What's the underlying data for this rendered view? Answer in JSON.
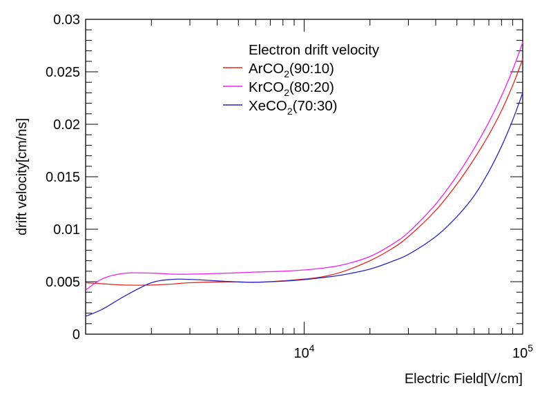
{
  "chart_data": {
    "type": "line",
    "title": "",
    "xlabel": "Electric Field[V/cm]",
    "ylabel": "drift velocity[cm/ns]",
    "xscale": "log",
    "xlim": [
      1000,
      100000
    ],
    "ylim": [
      0,
      0.03
    ],
    "grid": false,
    "legend": {
      "title": "Electron drift velocity",
      "placement": "top-center"
    },
    "x_ticks": [
      {
        "value": 10000,
        "base": "10",
        "exp": "4"
      },
      {
        "value": 100000,
        "base": "10",
        "exp": "5"
      }
    ],
    "y_ticks": [
      {
        "value": 0,
        "label": "0"
      },
      {
        "value": 0.005,
        "label": "0.005"
      },
      {
        "value": 0.01,
        "label": "0.01"
      },
      {
        "value": 0.015,
        "label": "0.015"
      },
      {
        "value": 0.02,
        "label": "0.02"
      },
      {
        "value": 0.025,
        "label": "0.025"
      },
      {
        "value": 0.03,
        "label": "0.03"
      }
    ],
    "series": [
      {
        "name": "ArCO2(90:10)",
        "legend_main": "ArCO",
        "legend_sub": "2",
        "legend_tail": "(90:10)",
        "color": "#e8231e",
        "x": [
          1000,
          1200,
          1500,
          2000,
          2500,
          3000,
          4000,
          5000,
          6000,
          8000,
          10000,
          12000,
          15000,
          20000,
          25000,
          30000,
          40000,
          50000,
          60000,
          70000,
          80000,
          90000,
          100000
        ],
        "y": [
          0.0049,
          0.0048,
          0.00468,
          0.00468,
          0.00478,
          0.0049,
          0.00498,
          0.00498,
          0.00494,
          0.00508,
          0.00525,
          0.00545,
          0.00595,
          0.007,
          0.0081,
          0.0093,
          0.0118,
          0.0143,
          0.0167,
          0.019,
          0.0213,
          0.0237,
          0.0262
        ]
      },
      {
        "name": "KrCO2(80:20)",
        "legend_main": "KrCO",
        "legend_sub": "2",
        "legend_tail": "(80:20)",
        "color": "#f01ef0",
        "x": [
          1000,
          1200,
          1500,
          2000,
          2500,
          3000,
          4000,
          5000,
          6000,
          8000,
          10000,
          12000,
          15000,
          20000,
          25000,
          30000,
          40000,
          50000,
          60000,
          70000,
          80000,
          90000,
          100000
        ],
        "y": [
          0.0042,
          0.0053,
          0.0058,
          0.00582,
          0.00572,
          0.00572,
          0.00578,
          0.00585,
          0.00592,
          0.006,
          0.00612,
          0.00628,
          0.0066,
          0.0074,
          0.0085,
          0.0097,
          0.0124,
          0.0151,
          0.0177,
          0.0202,
          0.0227,
          0.0252,
          0.0278
        ]
      },
      {
        "name": "XeCO2(70:30)",
        "legend_main": "XeCO",
        "legend_sub": "2",
        "legend_tail": "(70:30)",
        "color": "#2424c8",
        "x": [
          1000,
          1200,
          1500,
          2000,
          2500,
          3000,
          4000,
          5000,
          6000,
          8000,
          10000,
          12000,
          15000,
          20000,
          25000,
          30000,
          40000,
          50000,
          60000,
          70000,
          80000,
          90000,
          100000
        ],
        "y": [
          0.0017,
          0.0024,
          0.0036,
          0.0049,
          0.00522,
          0.00522,
          0.00508,
          0.00498,
          0.00495,
          0.00505,
          0.0052,
          0.00538,
          0.00565,
          0.0062,
          0.0069,
          0.0076,
          0.0093,
          0.0112,
          0.0132,
          0.0155,
          0.0179,
          0.0204,
          0.023
        ]
      }
    ]
  }
}
